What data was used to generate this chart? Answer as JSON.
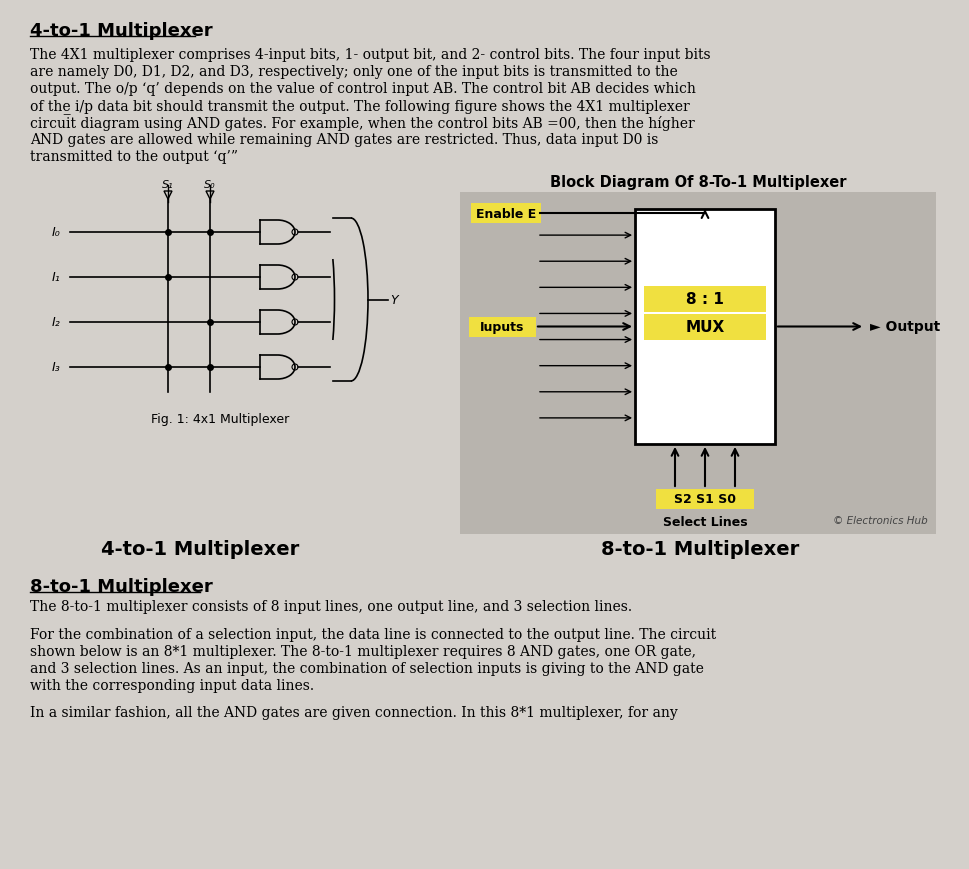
{
  "bg_color": "#d4d0cb",
  "panel_bg": "#c8c4be",
  "title_heading": "4-to-1 Multiplexer",
  "body_text_1a": "The 4X1 multiplexer comprises 4-input bits, 1- output bit, and 2- control bits. The four input bits",
  "body_text_1b": "are namely D0, D1, D2, and D3, respectively; only one of the input bits is transmitted to the",
  "body_text_1c": "output. The o/p ‘q’ depends on the value of control input AB. The control bit AB decides which",
  "body_text_1d": "of the̲ i/p data bit should transmit the output. The following figure shows the 4X1 multiplexer",
  "body_text_1e": "circuit diagram using AND gates. For example, when the control bits AB =00, then the hígher",
  "body_text_1f": "AND gates are allowed while remaining AND gates are restricted. Thus, data input D0 is",
  "body_text_1g": "transmitted to the output ‘q’”",
  "fig_caption": "Fig. 1: 4x1 Multiplexer",
  "block_title": "Block Diagram Of 8-To-1 Multiplexer",
  "enable_label": "Enable E",
  "inputs_label": "Iuputs",
  "mux_label_1": "8 : 1",
  "mux_label_2": "MUX",
  "output_label": "► Output",
  "select_label_1": "S2 S1 S0",
  "select_label_2": "Select Lines",
  "watermark": "© Electronics Hub",
  "caption_left": "4-to-1 Multiplexer",
  "caption_right": "8-to-1 Multiplexer",
  "heading2": "8-to-1 Multiplexer",
  "para2": "The 8-to-1 multiplexer consists of 8 input lines, one output line, and 3 selection lines.",
  "para3a": "For the combination of a selection input, the data line is connected to the output line. The circuit",
  "para3b": "shown below is an 8*1 multiplexer. The 8-to-1 multiplexer requires 8 AND gates, one OR gate,",
  "para3c": "and 3 selection lines. As an input, the combination of selection inputs is giving to the AND gate",
  "para3d": "with the corresponding input data lines.",
  "para4": "In a similar fashion, all the AND gates are given connection. In this 8*1 multiplexer, for any",
  "yellow_bg": "#f0e040",
  "black": "#000000",
  "white": "#ffffff",
  "gray_bg": "#b8b4ae"
}
